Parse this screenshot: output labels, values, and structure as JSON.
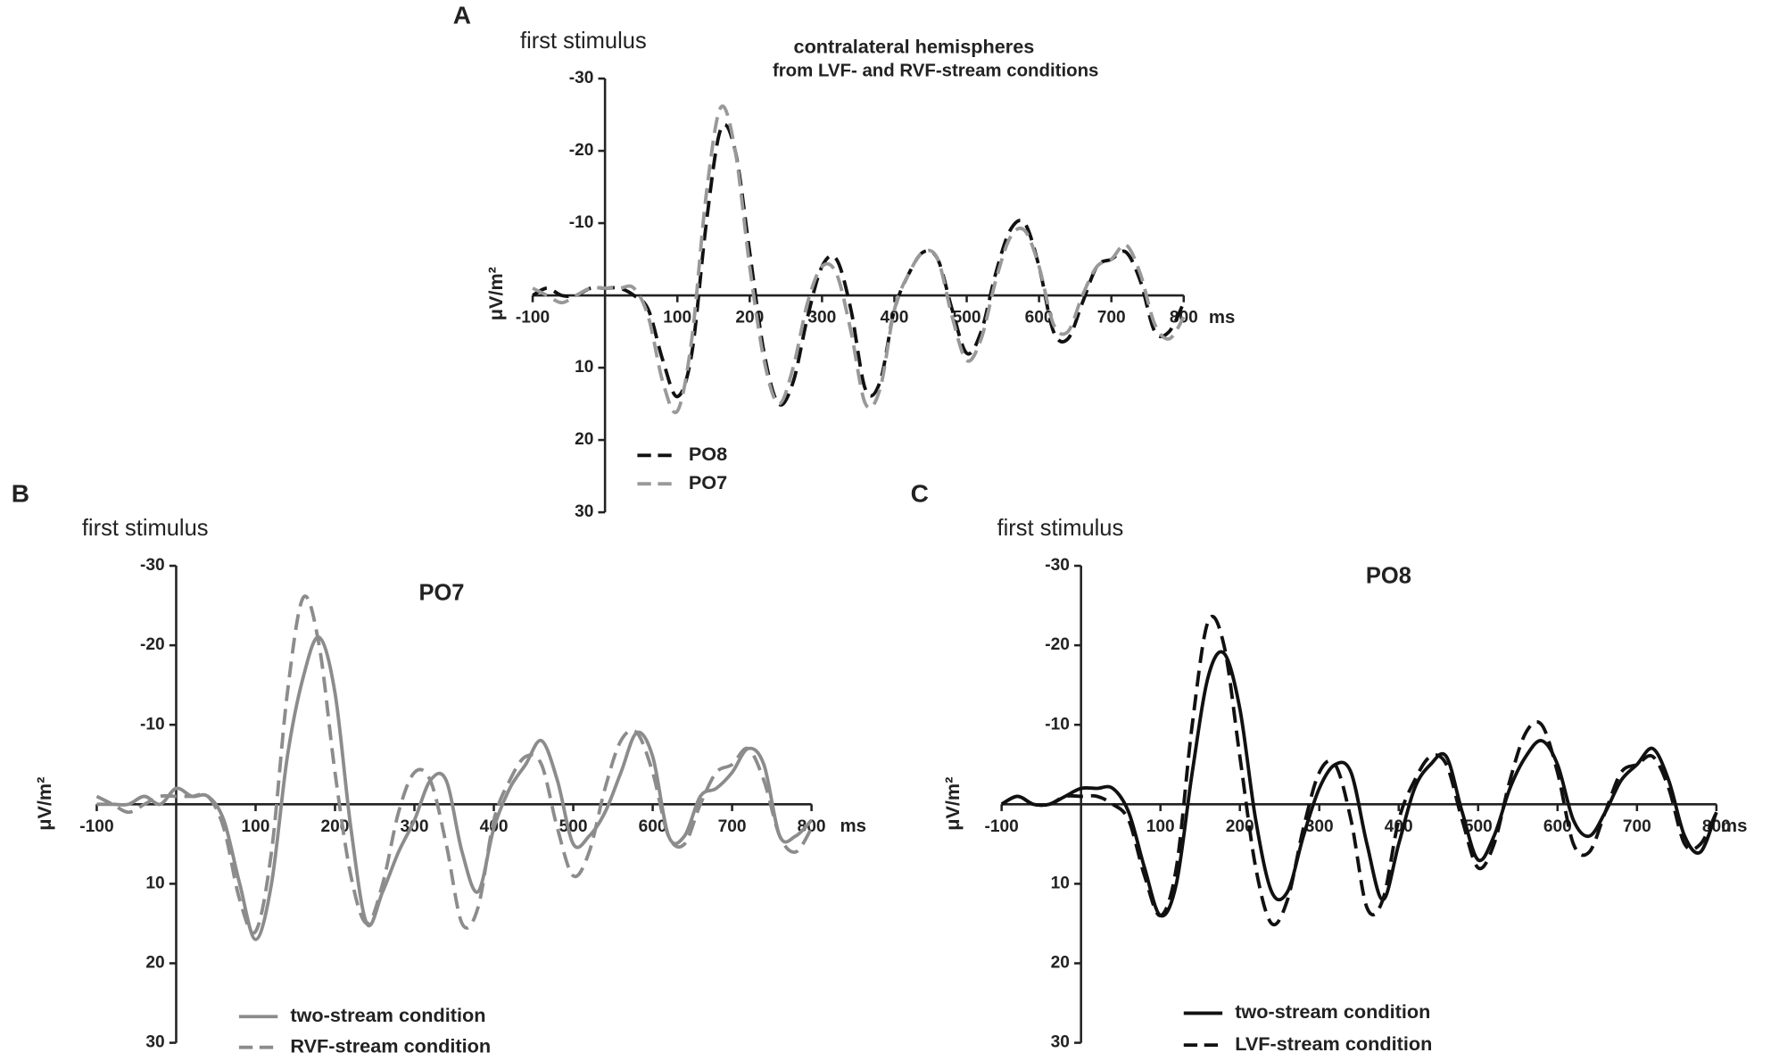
{
  "chart_data": [
    {
      "type": "line",
      "panel": "A",
      "annotation": "first stimulus",
      "title": "contralateral hemispheres",
      "subtitle": "from LVF- and RVF-stream conditions",
      "ylabel": "μV/m²",
      "xlabel": "ms",
      "x": [
        -100,
        -80,
        -60,
        -40,
        -20,
        0,
        20,
        40,
        60,
        80,
        100,
        120,
        140,
        160,
        180,
        200,
        220,
        240,
        260,
        280,
        300,
        320,
        340,
        360,
        380,
        400,
        420,
        440,
        460,
        480,
        500,
        520,
        540,
        560,
        580,
        600,
        620,
        640,
        660,
        680,
        700,
        720,
        740,
        760,
        780,
        800
      ],
      "xlim": [
        -100,
        800
      ],
      "ylim": [
        30,
        -30
      ],
      "xticks": [
        -100,
        100,
        200,
        300,
        400,
        500,
        600,
        700,
        800
      ],
      "yticks": [
        -30,
        -20,
        -10,
        10,
        20,
        30
      ],
      "legend": "lower left",
      "series": [
        {
          "name": "PO8",
          "color": "#111111",
          "dash": "dashed",
          "values": [
            0,
            -1,
            0,
            0,
            -1,
            -1,
            -1,
            0,
            2,
            9,
            14,
            8,
            -10,
            -23,
            -20,
            -6,
            8,
            15,
            12,
            3,
            -4,
            -5,
            2,
            13,
            12,
            2,
            -3,
            -6,
            -5,
            2,
            8,
            5,
            -3,
            -9,
            -10,
            -4,
            5,
            6,
            1,
            -4,
            -5,
            -6,
            -2,
            5,
            5,
            1
          ]
        },
        {
          "name": "PO7",
          "color": "#999999",
          "dash": "dashed",
          "values": [
            -1,
            0,
            1,
            0,
            -1,
            -1,
            -1,
            -1,
            3,
            12,
            16,
            6,
            -14,
            -26,
            -20,
            -4,
            9,
            15,
            10,
            1,
            -4,
            -3,
            5,
            15,
            13,
            2,
            -3,
            -6,
            -5,
            3,
            9,
            6,
            -2,
            -8,
            -9,
            -4,
            4,
            5,
            0,
            -4,
            -5,
            -7,
            -3,
            4,
            6,
            3
          ]
        }
      ]
    },
    {
      "type": "line",
      "panel": "B",
      "annotation": "first stimulus",
      "title": "PO7",
      "ylabel": "μV/m²",
      "xlabel": "ms",
      "x": [
        -100,
        -80,
        -60,
        -40,
        -20,
        0,
        20,
        40,
        60,
        80,
        100,
        120,
        140,
        160,
        180,
        200,
        220,
        240,
        260,
        280,
        300,
        320,
        340,
        360,
        380,
        400,
        420,
        440,
        460,
        480,
        500,
        520,
        540,
        560,
        580,
        600,
        620,
        640,
        660,
        680,
        700,
        720,
        740,
        760,
        780,
        800
      ],
      "xlim": [
        -100,
        800
      ],
      "ylim": [
        30,
        -30
      ],
      "xticks": [
        -100,
        100,
        200,
        300,
        400,
        500,
        600,
        700,
        800
      ],
      "yticks": [
        -30,
        -20,
        -10,
        10,
        20,
        30
      ],
      "legend": "lower left",
      "series": [
        {
          "name": "two-stream condition",
          "color": "#8c8c8c",
          "dash": "solid",
          "values": [
            0,
            0,
            0,
            -1,
            0,
            -2,
            -1,
            -1,
            2,
            10,
            17,
            10,
            -6,
            -16,
            -21,
            -14,
            3,
            15,
            11,
            6,
            2,
            -3,
            -3,
            6,
            11,
            3,
            -2,
            -5,
            -8,
            -3,
            5,
            4,
            1,
            -4,
            -9,
            -6,
            4,
            4,
            -1,
            -2,
            -4,
            -7,
            -5,
            4,
            4,
            2
          ]
        },
        {
          "name": "RVF-stream condition",
          "color": "#8c8c8c",
          "dash": "dashed",
          "values": [
            -1,
            0,
            1,
            0,
            -1,
            -1,
            -1,
            -1,
            3,
            12,
            16,
            6,
            -14,
            -26,
            -20,
            -4,
            9,
            15,
            10,
            1,
            -4,
            -3,
            5,
            15,
            13,
            2,
            -3,
            -6,
            -5,
            3,
            9,
            6,
            -2,
            -8,
            -9,
            -4,
            4,
            5,
            0,
            -4,
            -5,
            -7,
            -3,
            4,
            6,
            3
          ]
        }
      ]
    },
    {
      "type": "line",
      "panel": "C",
      "annotation": "first stimulus",
      "title": "PO8",
      "ylabel": "μV/m²",
      "xlabel": "ms",
      "x": [
        -100,
        -80,
        -60,
        -40,
        -20,
        0,
        20,
        40,
        60,
        80,
        100,
        120,
        140,
        160,
        180,
        200,
        220,
        240,
        260,
        280,
        300,
        320,
        340,
        360,
        380,
        400,
        420,
        440,
        460,
        480,
        500,
        520,
        540,
        560,
        580,
        600,
        620,
        640,
        660,
        680,
        700,
        720,
        740,
        760,
        780,
        800
      ],
      "xlim": [
        -100,
        800
      ],
      "ylim": [
        30,
        -30
      ],
      "xticks": [
        -100,
        100,
        200,
        300,
        400,
        500,
        600,
        700,
        800
      ],
      "yticks": [
        -30,
        -20,
        -10,
        10,
        20,
        30
      ],
      "legend": "lower left",
      "series": [
        {
          "name": "two-stream condition",
          "color": "#111111",
          "dash": "solid",
          "values": [
            0,
            -1,
            0,
            0,
            -1,
            -2,
            -2,
            -2,
            1,
            8,
            14,
            10,
            -4,
            -16,
            -19,
            -12,
            2,
            11,
            11,
            4,
            -2,
            -5,
            -4,
            5,
            12,
            5,
            -2,
            -5,
            -6,
            1,
            7,
            4,
            -2,
            -6,
            -8,
            -5,
            2,
            4,
            1,
            -3,
            -5,
            -7,
            -3,
            4,
            6,
            1
          ]
        },
        {
          "name": "LVF-stream condition",
          "color": "#111111",
          "dash": "dashed",
          "values": [
            0,
            -1,
            0,
            0,
            -1,
            -1,
            -1,
            0,
            2,
            9,
            14,
            8,
            -10,
            -23,
            -20,
            -6,
            8,
            15,
            12,
            3,
            -4,
            -5,
            2,
            13,
            12,
            2,
            -3,
            -6,
            -5,
            2,
            8,
            5,
            -3,
            -9,
            -10,
            -4,
            5,
            6,
            1,
            -4,
            -5,
            -6,
            -2,
            5,
            5,
            1
          ]
        }
      ]
    }
  ]
}
